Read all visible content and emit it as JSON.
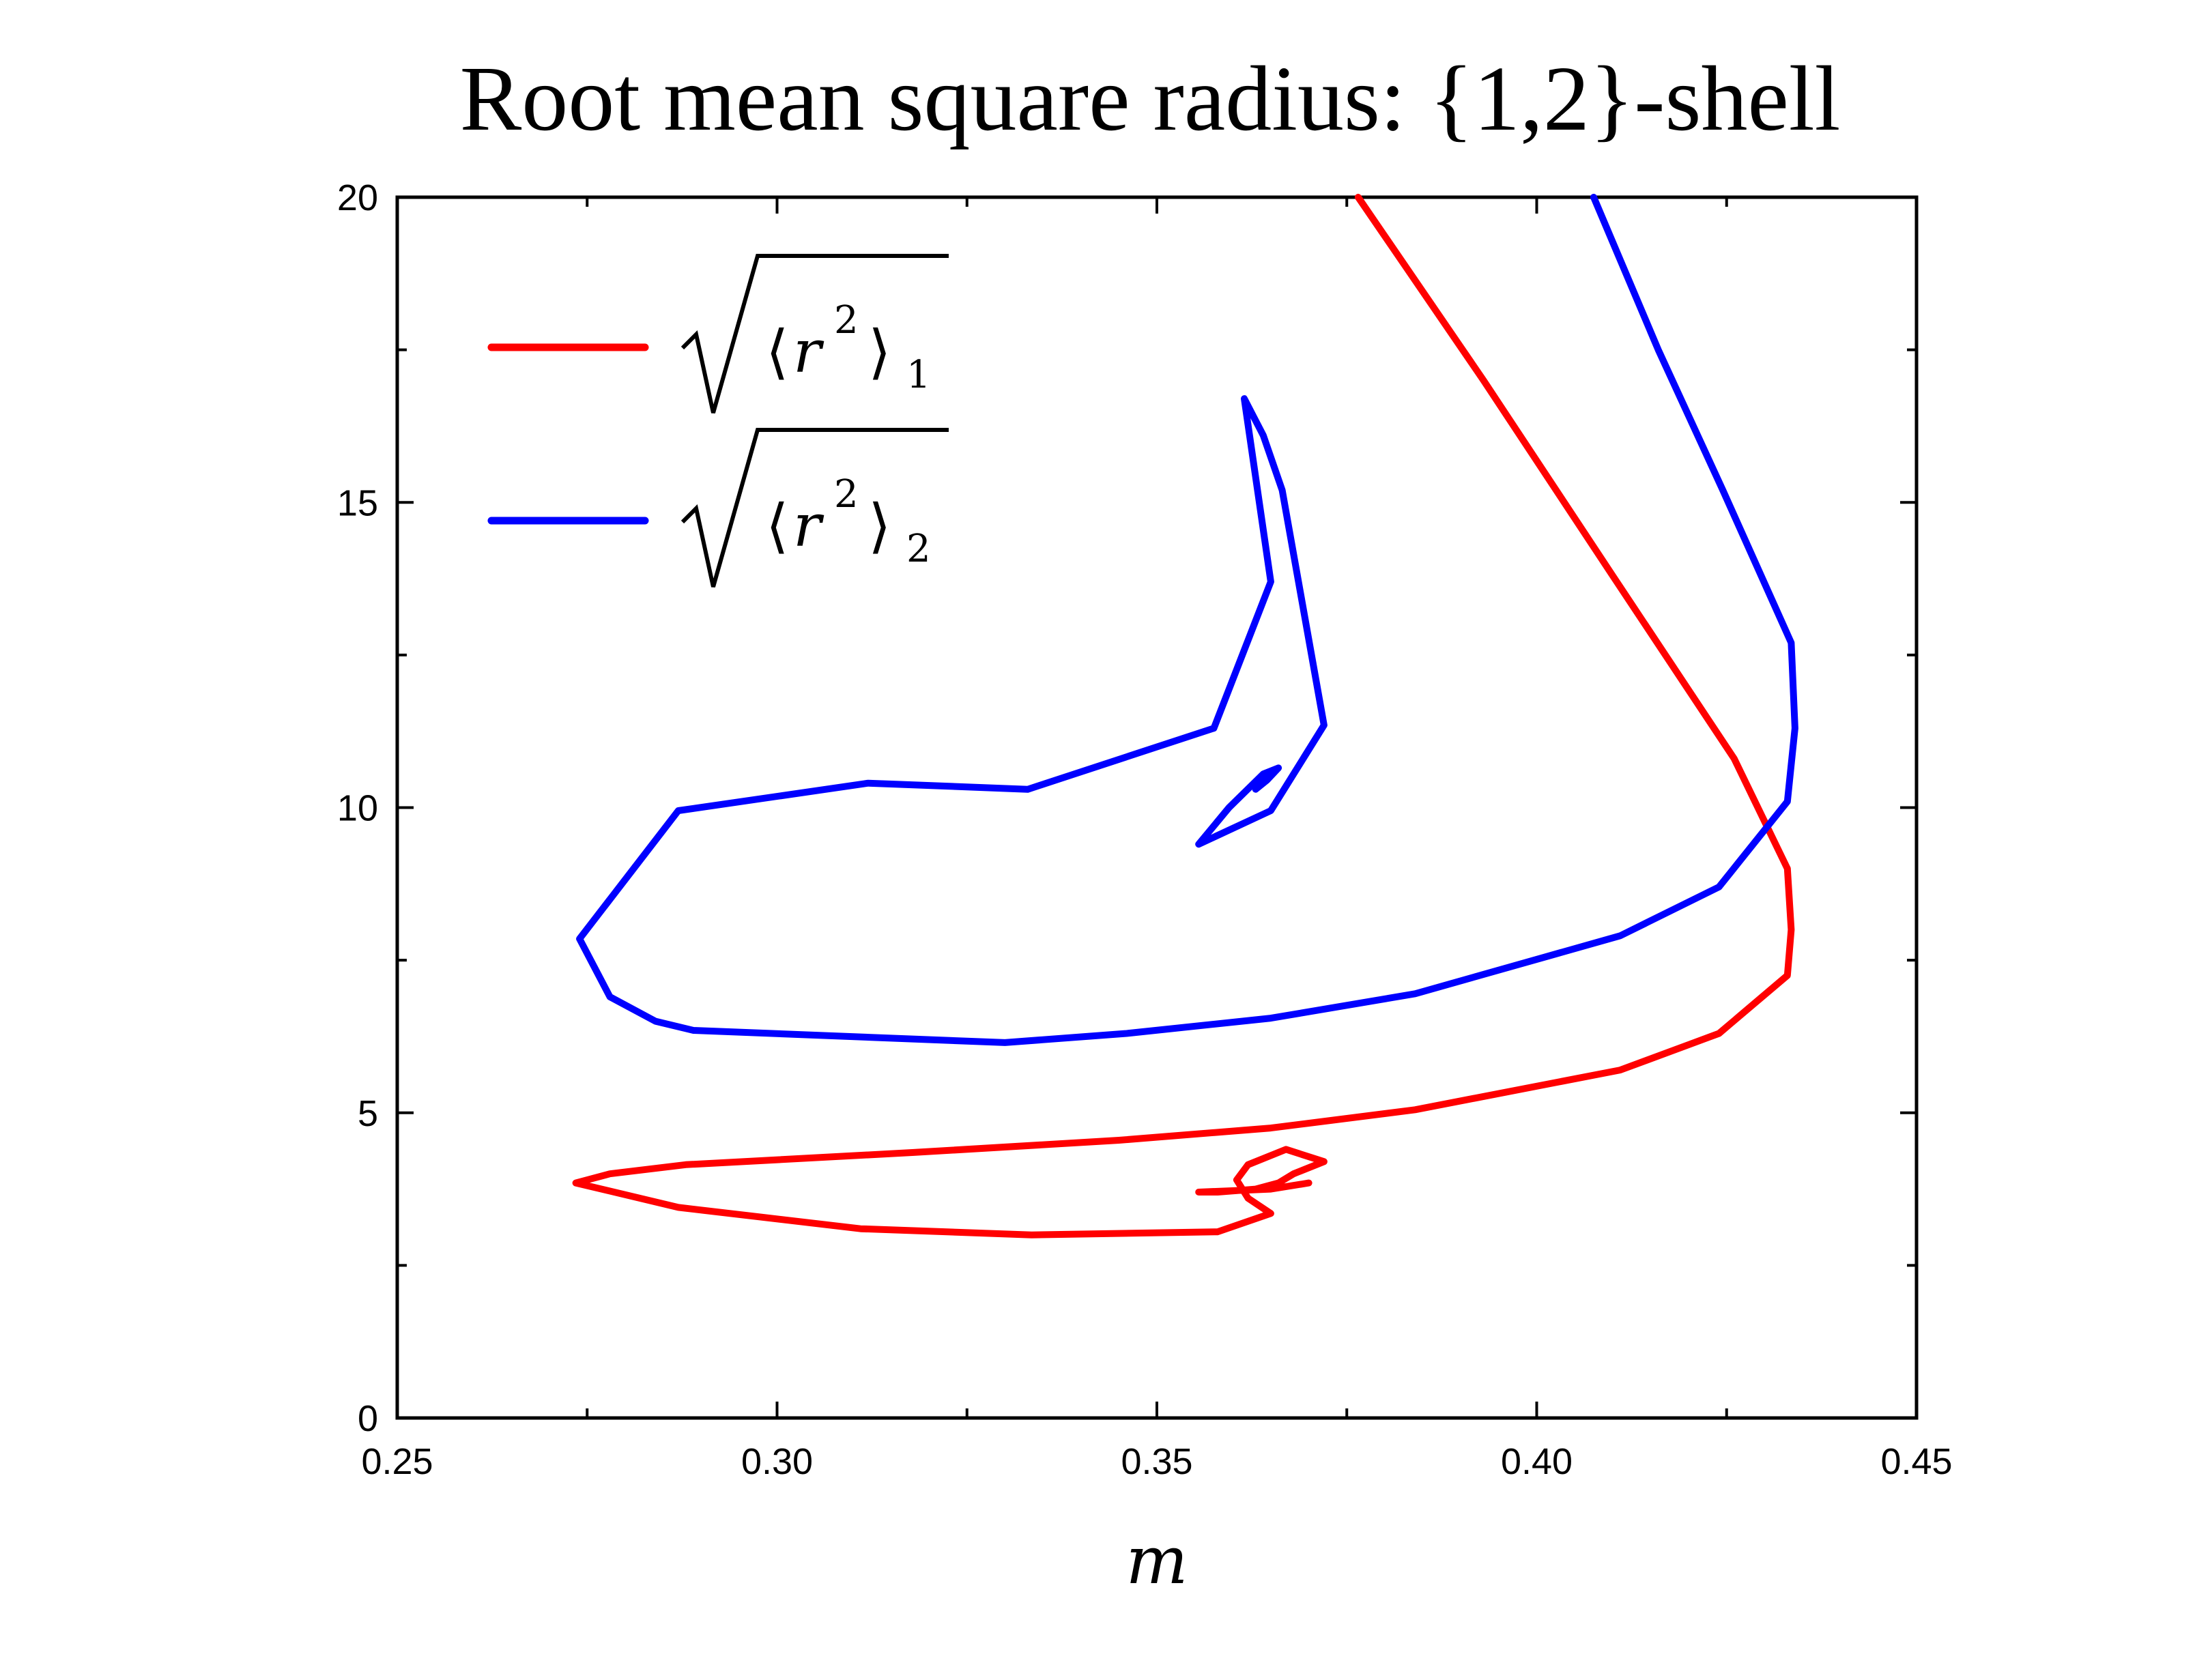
{
  "chart_data": {
    "type": "line",
    "title": "Root mean square radius: {1,2}-shell",
    "xlabel": "m",
    "ylabel": "",
    "xlim": [
      0.25,
      0.45
    ],
    "ylim": [
      0,
      20
    ],
    "x_ticks": [
      "0.25",
      "0.30",
      "0.35",
      "0.40",
      "0.45"
    ],
    "y_ticks": [
      "0",
      "5",
      "10",
      "15",
      "20"
    ],
    "x_tick_values": [
      0.25,
      0.3,
      0.35,
      0.4,
      0.45
    ],
    "y_tick_values": [
      0,
      5,
      10,
      15,
      20
    ],
    "x_minor_ticks": [
      0.275,
      0.325,
      0.375,
      0.425
    ],
    "y_minor_ticks": [
      2.5,
      7.5,
      12.5,
      17.5
    ],
    "grid": false,
    "legend_position": "top-left",
    "series": [
      {
        "legend_symbol": "r",
        "legend_sup": "2",
        "legend_sub": "1",
        "color": "#ff0000",
        "points": [
          [
            0.3765,
            20.0
          ],
          [
            0.393,
            17.0
          ],
          [
            0.41,
            13.8
          ],
          [
            0.426,
            10.8
          ],
          [
            0.433,
            9.0
          ],
          [
            0.4335,
            8.0
          ],
          [
            0.433,
            7.25
          ],
          [
            0.424,
            6.3
          ],
          [
            0.411,
            5.7
          ],
          [
            0.384,
            5.05
          ],
          [
            0.365,
            4.75
          ],
          [
            0.345,
            4.55
          ],
          [
            0.318,
            4.35
          ],
          [
            0.288,
            4.15
          ],
          [
            0.278,
            4.0
          ],
          [
            0.2735,
            3.85
          ],
          [
            0.287,
            3.45
          ],
          [
            0.311,
            3.1
          ],
          [
            0.3335,
            3.0
          ],
          [
            0.358,
            3.05
          ],
          [
            0.365,
            3.35
          ],
          [
            0.362,
            3.6
          ],
          [
            0.3605,
            3.9
          ],
          [
            0.362,
            4.15
          ],
          [
            0.367,
            4.4
          ],
          [
            0.372,
            4.2
          ],
          [
            0.368,
            4.0
          ],
          [
            0.366,
            3.85
          ],
          [
            0.363,
            3.75
          ],
          [
            0.358,
            3.7
          ],
          [
            0.3555,
            3.7
          ],
          [
            0.365,
            3.75
          ],
          [
            0.37,
            3.85
          ]
        ]
      },
      {
        "legend_symbol": "r",
        "legend_sup": "2",
        "legend_sub": "2",
        "color": "#0000ff",
        "points": [
          [
            0.4075,
            20.0
          ],
          [
            0.416,
            17.5
          ],
          [
            0.4245,
            15.2
          ],
          [
            0.4335,
            12.7
          ],
          [
            0.434,
            11.3
          ],
          [
            0.433,
            10.1
          ],
          [
            0.424,
            8.7
          ],
          [
            0.411,
            7.9
          ],
          [
            0.384,
            6.95
          ],
          [
            0.365,
            6.55
          ],
          [
            0.346,
            6.3
          ],
          [
            0.33,
            6.15
          ],
          [
            0.289,
            6.35
          ],
          [
            0.284,
            6.5
          ],
          [
            0.278,
            6.9
          ],
          [
            0.274,
            7.85
          ],
          [
            0.287,
            9.95
          ],
          [
            0.312,
            10.4
          ],
          [
            0.333,
            10.3
          ],
          [
            0.3575,
            11.3
          ],
          [
            0.365,
            13.7
          ],
          [
            0.3615,
            16.7
          ],
          [
            0.364,
            16.1
          ],
          [
            0.3665,
            15.2
          ],
          [
            0.372,
            11.35
          ],
          [
            0.365,
            9.95
          ],
          [
            0.3555,
            9.4
          ],
          [
            0.3595,
            10.0
          ],
          [
            0.364,
            10.55
          ],
          [
            0.366,
            10.65
          ],
          [
            0.3645,
            10.45
          ],
          [
            0.363,
            10.3
          ],
          [
            0.365,
            10.6
          ]
        ]
      }
    ]
  }
}
